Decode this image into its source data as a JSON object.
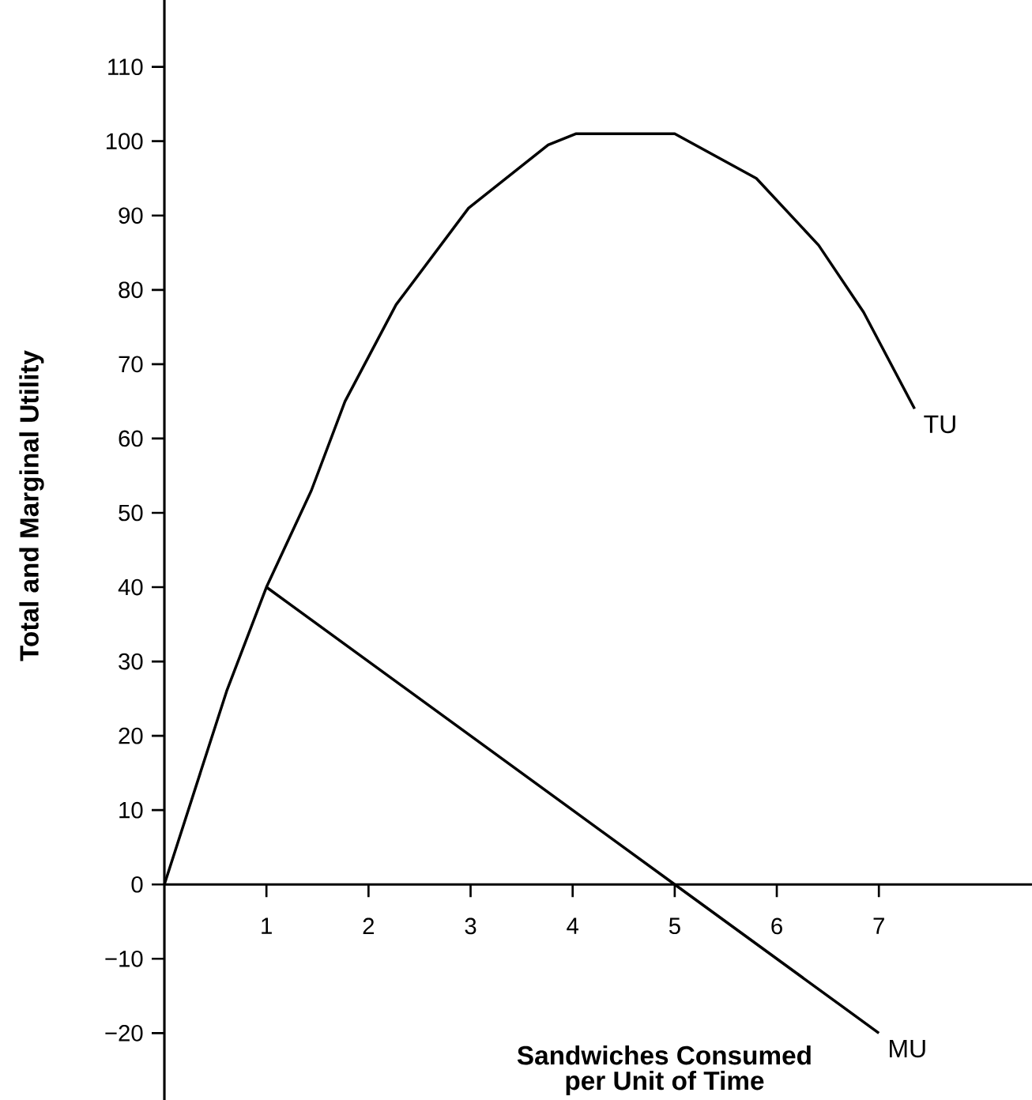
{
  "chart_data": {
    "type": "line",
    "xlabel": "Sandwiches Consumed\nper Unit of Time",
    "ylabel": "Total and Marginal Utility",
    "xlim": [
      0,
      8.5
    ],
    "ylim": [
      -29,
      119
    ],
    "xticks": [
      1,
      2,
      3,
      4,
      5,
      6,
      7
    ],
    "yticks": [
      {
        "value": -20,
        "label": "−20"
      },
      {
        "value": -10,
        "label": "−10"
      },
      0,
      10,
      20,
      30,
      40,
      50,
      60,
      70,
      80,
      90,
      100,
      110
    ],
    "series": [
      {
        "name": "TU",
        "color": "#000000",
        "x": [
          0,
          0.61,
          1,
          1.44,
          1.77,
          2.27,
          2.98,
          3.76,
          4.03,
          5.0,
          5.8,
          6.41,
          6.85,
          7.35
        ],
        "values": [
          0,
          26,
          40,
          53,
          65,
          78,
          91,
          99.5,
          101,
          101,
          95,
          86,
          77,
          64
        ]
      },
      {
        "name": "MU",
        "color": "#000000",
        "x": [
          1,
          5,
          7
        ],
        "values": [
          40,
          0,
          -20
        ]
      }
    ]
  }
}
